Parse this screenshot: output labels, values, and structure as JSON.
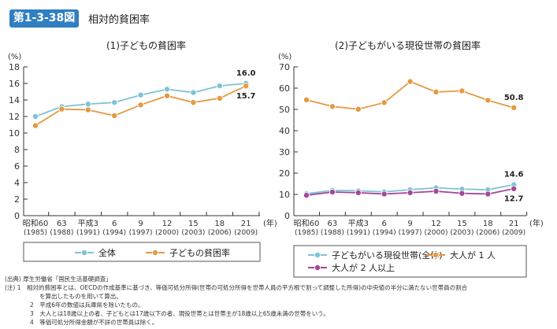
{
  "header": {
    "figure_number": "第1-3-38図",
    "title": "相対的貧困率"
  },
  "chart_data": [
    {
      "type": "line",
      "title": "(1)子どもの貧困率",
      "ylabel": "(%)",
      "xunit": "(年)",
      "ylim": [
        0,
        18
      ],
      "yticks": [
        0,
        2,
        4,
        6,
        8,
        10,
        12,
        14,
        16,
        18
      ],
      "categories": [
        "昭和60",
        "63",
        "平成3",
        "6",
        "9",
        "12",
        "15",
        "18",
        "21"
      ],
      "categories_sub": [
        "(1985)",
        "(1988)",
        "(1991)",
        "(1994)",
        "(1997)",
        "(2000)",
        "(2003)",
        "(2006)",
        "(2009)"
      ],
      "series": [
        {
          "name": "全体",
          "color": "#7ec3d6",
          "values": [
            12.0,
            13.2,
            13.5,
            13.7,
            14.6,
            15.3,
            14.9,
            15.7,
            16.0
          ],
          "end_label": "16.0"
        },
        {
          "name": "子どもの貧困率",
          "color": "#e39a42",
          "values": [
            10.9,
            12.9,
            12.8,
            12.1,
            13.4,
            14.5,
            13.7,
            14.2,
            15.7
          ],
          "end_label": "15.7"
        }
      ],
      "grid": false,
      "legend": "bottom"
    },
    {
      "type": "line",
      "title": "(2)子どもがいる現役世帯の貧困率",
      "ylabel": "(%)",
      "xunit": "(年)",
      "ylim": [
        0,
        70
      ],
      "yticks": [
        0,
        10,
        20,
        30,
        40,
        50,
        60,
        70
      ],
      "categories": [
        "昭和60",
        "63",
        "平成3",
        "6",
        "9",
        "12",
        "15",
        "18",
        "21"
      ],
      "categories_sub": [
        "(1985)",
        "(1988)",
        "(1991)",
        "(1994)",
        "(1997)",
        "(2000)",
        "(2003)",
        "(2006)",
        "(2009)"
      ],
      "series": [
        {
          "name": "子どもがいる現役世帯(全体)",
          "color": "#7ec3d6",
          "values": [
            10.3,
            11.9,
            11.7,
            11.2,
            12.2,
            13.1,
            12.5,
            12.2,
            14.6
          ],
          "end_label": "14.6"
        },
        {
          "name": "大人が 1 人",
          "color": "#e39a42",
          "values": [
            54.5,
            51.4,
            50.1,
            53.2,
            63.1,
            58.2,
            58.7,
            54.3,
            50.8
          ],
          "end_label": "50.8"
        },
        {
          "name": "大人が 2 人以上",
          "color": "#a3479a",
          "values": [
            9.6,
            11.1,
            10.8,
            10.2,
            10.8,
            11.5,
            10.5,
            10.2,
            12.7
          ],
          "end_label": "12.7"
        }
      ],
      "grid": false,
      "legend": "bottom"
    }
  ],
  "notes": {
    "source": "(出典) 厚生労働省「国民生活基礎調査」",
    "note1a": "(注) 1　相対的貧困率とは、OECDの作成基準に基づき、等価可処分所得(世帯の可処分所得を世帯人員の平方根で割って調整した所得)の中央値の半分に満たない世帯員の割合",
    "note1b": "を算出したものを用いて算出。",
    "note2": "2　平成6年の数値は兵庫県を除いたもの。",
    "note3": "3　大人とは18歳以上の者、子どもとは17歳以下の者、現役世帯とは世帯主が18歳以上65歳未満の世帯をいう。",
    "note4": "4　等価可処分所得金額が不詳の世帯員は除く。"
  }
}
